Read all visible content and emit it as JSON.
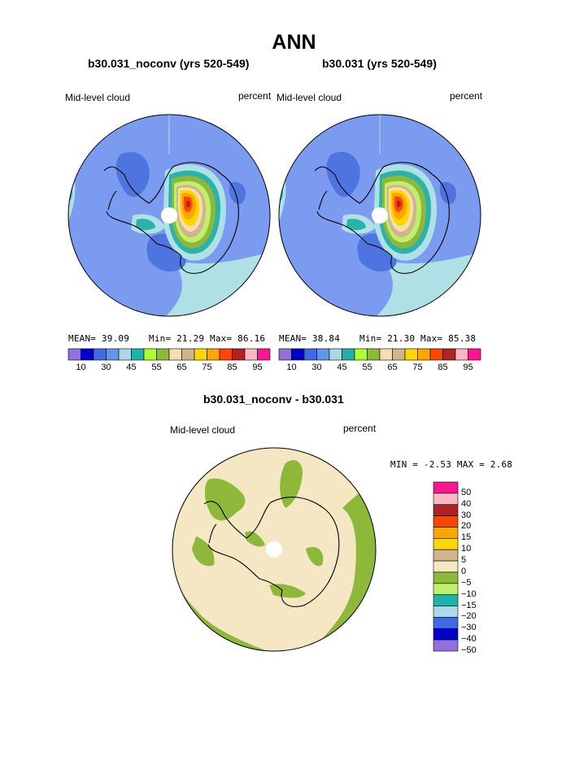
{
  "title": "ANN",
  "panels": [
    {
      "case_title": "b30.031_noconv (yrs 520-549)",
      "field_label": "Mid-level cloud",
      "units": "percent",
      "mean_text": "MEAN=  39.09",
      "min_text": "Min=  21.29",
      "max_text": "Max=  86.16"
    },
    {
      "case_title": "b30.031 (yrs 520-549)",
      "field_label": "Mid-level cloud",
      "units": "percent",
      "mean_text": "MEAN=  38.84",
      "min_text": "Min=  21.30",
      "max_text": "Max=  85.38"
    }
  ],
  "diff_panel": {
    "title": "b30.031_noconv - b30.031",
    "field_label": "Mid-level cloud",
    "units": "percent",
    "minmax_text": "MIN =   -2.53 MAX =    2.68"
  },
  "chart_data": [
    {
      "type": "heatmap",
      "projection": "south polar stereographic",
      "title": "b30.031_noconv (yrs 520-549)",
      "variable": "Mid-level cloud",
      "units": "percent",
      "mean": 39.09,
      "min": 21.29,
      "max": 86.16,
      "contour_levels": [
        10,
        20,
        30,
        40,
        45,
        50,
        55,
        60,
        65,
        70,
        75,
        80,
        85,
        90,
        95
      ],
      "colorbar_tick_labels": [
        "10",
        "30",
        "45",
        "55",
        "65",
        "75",
        "85",
        "95"
      ],
      "colors": [
        "#9370db",
        "#0000c8",
        "#4169e1",
        "#6495ed",
        "#add8e6",
        "#20b2aa",
        "#adff2f",
        "#8db83a",
        "#f5deb3",
        "#d2b48c",
        "#ffd700",
        "#ffa500",
        "#ff4500",
        "#b22222",
        "#ffb6c1",
        "#ff1493"
      ]
    },
    {
      "type": "heatmap",
      "projection": "south polar stereographic",
      "title": "b30.031 (yrs 520-549)",
      "variable": "Mid-level cloud",
      "units": "percent",
      "mean": 38.84,
      "min": 21.3,
      "max": 85.38,
      "contour_levels": [
        10,
        20,
        30,
        40,
        45,
        50,
        55,
        60,
        65,
        70,
        75,
        80,
        85,
        90,
        95
      ],
      "colorbar_tick_labels": [
        "10",
        "30",
        "45",
        "55",
        "65",
        "75",
        "85",
        "95"
      ],
      "colors": [
        "#9370db",
        "#0000c8",
        "#4169e1",
        "#6495ed",
        "#add8e6",
        "#20b2aa",
        "#adff2f",
        "#8db83a",
        "#f5deb3",
        "#d2b48c",
        "#ffd700",
        "#ffa500",
        "#ff4500",
        "#b22222",
        "#ffb6c1",
        "#ff1493"
      ]
    },
    {
      "type": "heatmap",
      "projection": "south polar stereographic",
      "title": "b30.031_noconv - b30.031",
      "variable": "Mid-level cloud",
      "units": "percent",
      "min": -2.53,
      "max": 2.68,
      "contour_levels": [
        -50,
        -40,
        -30,
        -20,
        -15,
        -10,
        -5,
        0,
        5,
        10,
        15,
        20,
        30,
        40,
        50
      ],
      "colorbar_tick_labels": [
        "50",
        "40",
        "30",
        "20",
        "15",
        "10",
        "5",
        "0",
        "−5",
        "−10",
        "−15",
        "−20",
        "−30",
        "−40",
        "−50"
      ],
      "colors": [
        "#ff1493",
        "#ffb6c1",
        "#b22222",
        "#ff4500",
        "#ffa500",
        "#ffd700",
        "#d2b48c",
        "#f5e6c4",
        "#8db83a",
        "#c0ef6c",
        "#20b2aa",
        "#add8e6",
        "#4169e1",
        "#0000c8",
        "#9370db"
      ]
    }
  ]
}
